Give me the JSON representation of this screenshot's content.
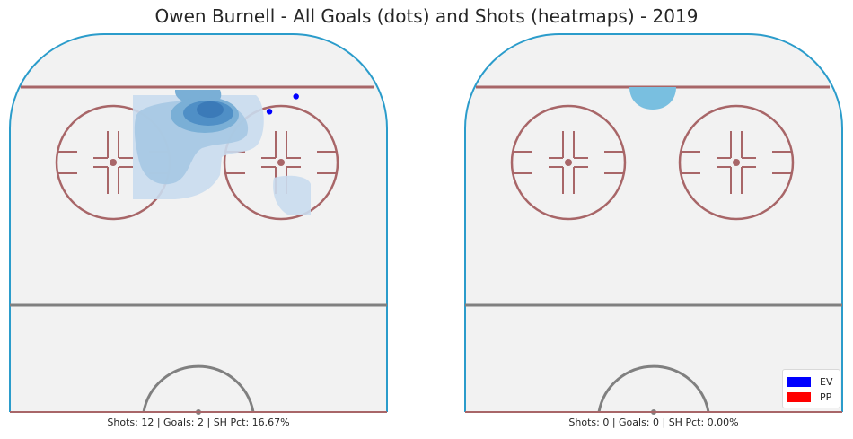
{
  "title": "Owen Burnell - All Goals (dots) and Shots (heatmaps) - 2019",
  "chart_data": [
    {
      "type": "scatter",
      "panel": "left",
      "caption": "Shots: 12 | Goals: 2 | SH Pct: 16.67%",
      "stats": {
        "shots": 12,
        "goals": 2,
        "sh_pct": 16.67
      },
      "goals": [
        {
          "x": 22,
          "y": 83.5,
          "strength": "EV"
        },
        {
          "x": 16,
          "y": 79.5,
          "strength": "EV"
        }
      ],
      "heatmap_levels": [
        {
          "level": 1,
          "color": "#c9dcee"
        },
        {
          "level": 2,
          "color": "#a6c8e3"
        },
        {
          "level": 3,
          "color": "#7aafd6"
        },
        {
          "level": 4,
          "color": "#4f8fc6"
        },
        {
          "level": 5,
          "color": "#3b7ab8"
        }
      ]
    },
    {
      "type": "scatter",
      "panel": "right",
      "caption": "Shots: 0 | Goals: 0 | SH Pct: 0.00%",
      "stats": {
        "shots": 0,
        "goals": 0,
        "sh_pct": 0.0
      },
      "goals": [],
      "heatmap_levels": [
        {
          "level": 1,
          "color": "#79bfe0"
        }
      ]
    }
  ],
  "legend": {
    "placement": "bottom-right",
    "items": [
      {
        "label": "EV",
        "color": "#0000ff"
      },
      {
        "label": "PP",
        "color": "#ff0000"
      }
    ]
  },
  "rink_colors": {
    "boards": "#2b9ccb",
    "ice": "#f2f2f2",
    "red_lines": "#a86668",
    "blue_line": "#808080"
  }
}
